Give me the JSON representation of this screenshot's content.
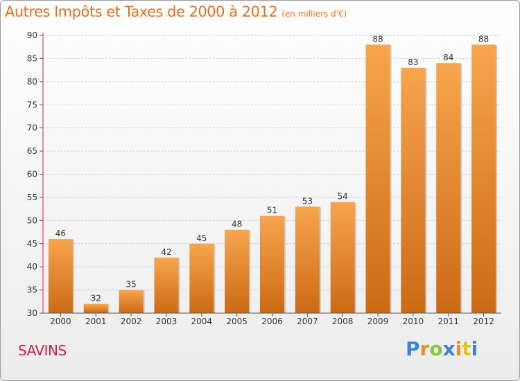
{
  "header": {
    "title": "Autres Impôts et Taxes de 2000 à 2012",
    "subtitle": "(en milliers d'€)"
  },
  "commune": "SAVINS",
  "brand": {
    "letters": [
      "P",
      "r",
      "o",
      "x",
      "i",
      "t",
      "i"
    ],
    "colors": [
      "#3a86d4",
      "#f28a1a",
      "#8cc63f",
      "#3a86d4",
      "#f28a1a",
      "#e6c21a",
      "#3a86d4"
    ]
  },
  "colors": {
    "bar_top": "#f7a54e",
    "bar_bottom": "#cc6a14",
    "axis_line": "#cc2244",
    "grid": "#d0d0d0",
    "title": "#e07020"
  },
  "chart_data": {
    "type": "bar",
    "title": "Autres Impôts et Taxes de 2000 à 2012",
    "subtitle": "(en milliers d'€)",
    "categories": [
      "2000",
      "2001",
      "2002",
      "2003",
      "2004",
      "2005",
      "2006",
      "2007",
      "2008",
      "2009",
      "2010",
      "2011",
      "2012"
    ],
    "values": [
      46,
      32,
      35,
      42,
      45,
      48,
      51,
      53,
      54,
      88,
      83,
      84,
      88
    ],
    "ylim": [
      30,
      90
    ],
    "yticks": [
      30,
      35,
      40,
      45,
      50,
      55,
      60,
      65,
      70,
      75,
      80,
      85,
      90
    ],
    "grid": true,
    "data_labels": true
  }
}
